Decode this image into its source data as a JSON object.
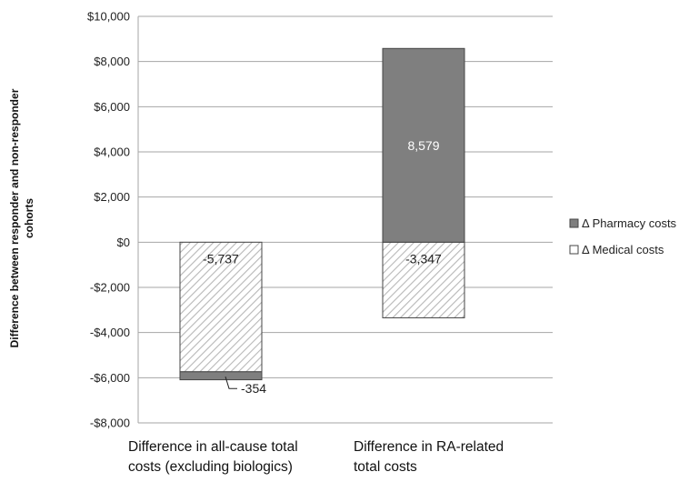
{
  "chart_data": {
    "type": "bar",
    "stacked": true,
    "categories": [
      [
        "Difference in all-cause total",
        "costs (excluding biologics)"
      ],
      [
        "Difference in RA-related",
        "total costs"
      ]
    ],
    "series": [
      {
        "name": "Δ Pharmacy costs",
        "values": [
          -354,
          8579
        ],
        "labels": [
          "-354",
          "8,579"
        ],
        "color": "#7f7f7f"
      },
      {
        "name": "Δ Medical costs",
        "values": [
          -5737,
          -3347
        ],
        "labels": [
          "-5,737",
          "-3,347"
        ],
        "color": "#ffffff",
        "pattern": "diagonal-hatch"
      }
    ],
    "ylabel": [
      "Difference between responder and non-responder",
      "cohorts"
    ],
    "ylim": [
      -8000,
      10000
    ],
    "yticks": [
      10000,
      8000,
      6000,
      4000,
      2000,
      0,
      -2000,
      -4000,
      -6000,
      -8000
    ],
    "ytick_labels": [
      "$10,000",
      "$8,000",
      "$6,000",
      "$4,000",
      "$2,000",
      "$0",
      "-$2,000",
      "-$4,000",
      "-$6,000",
      "-$8,000"
    ],
    "grid": true,
    "legend_position": "right",
    "legend": [
      "Δ Pharmacy costs",
      "Δ Medical costs"
    ]
  }
}
